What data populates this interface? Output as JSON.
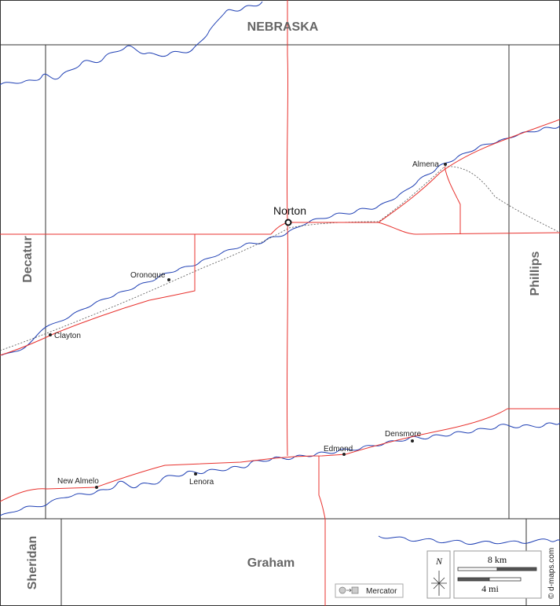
{
  "regions": {
    "nebraska": "NEBRASKA",
    "decatur": "Decatur",
    "phillips": "Phillips",
    "sheridan": "Sheridan",
    "graham": "Graham"
  },
  "seat": {
    "name": "Norton"
  },
  "towns": [
    {
      "id": "almena",
      "name": "Almena"
    },
    {
      "id": "oronoque",
      "name": "Oronoque"
    },
    {
      "id": "clayton",
      "name": "Clayton"
    },
    {
      "id": "edmond",
      "name": "Edmond"
    },
    {
      "id": "densmore",
      "name": "Densmore"
    },
    {
      "id": "new-almelo",
      "name": "New Almelo"
    },
    {
      "id": "lenora",
      "name": "Lenora"
    }
  ],
  "scale": {
    "km_label": "8 km",
    "mi_label": "4 mi"
  },
  "compass": {
    "north_label": "N"
  },
  "projection": {
    "label": "Mercator"
  },
  "credit": "© d-maps.com",
  "colors": {
    "roads": "#e8322e",
    "rivers": "#1e3fb4",
    "boundaries": "#333333",
    "railroad": "#555555",
    "region_labels": "#666666"
  }
}
